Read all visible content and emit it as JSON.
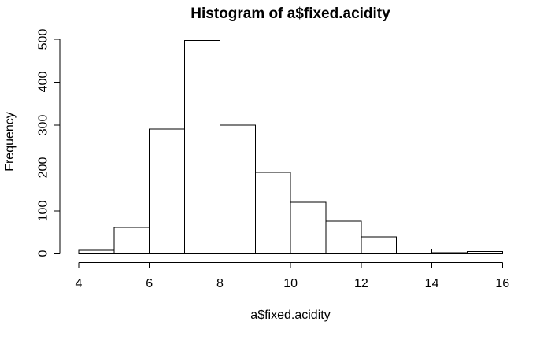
{
  "chart_data": {
    "type": "bar",
    "subtype": "histogram",
    "title": "Histogram of a$fixed.acidity",
    "xlabel": "a$fixed.acidity",
    "ylabel": "Frequency",
    "bin_edges": [
      4,
      5,
      6,
      7,
      8,
      9,
      10,
      11,
      12,
      13,
      14,
      15,
      16
    ],
    "counts": [
      8,
      61,
      291,
      497,
      300,
      190,
      120,
      76,
      39,
      11,
      2,
      5
    ],
    "x_ticks": [
      4,
      6,
      8,
      10,
      12,
      14,
      16
    ],
    "y_ticks": [
      0,
      100,
      200,
      300,
      400,
      500
    ],
    "xlim": [
      4,
      16
    ],
    "ylim": [
      0,
      500
    ],
    "grid": false,
    "legend": false,
    "colors": {
      "background": "#ffffff",
      "bar_fill": "#ffffff",
      "bar_border": "#000000",
      "axis": "#000000",
      "text": "#000000"
    }
  }
}
